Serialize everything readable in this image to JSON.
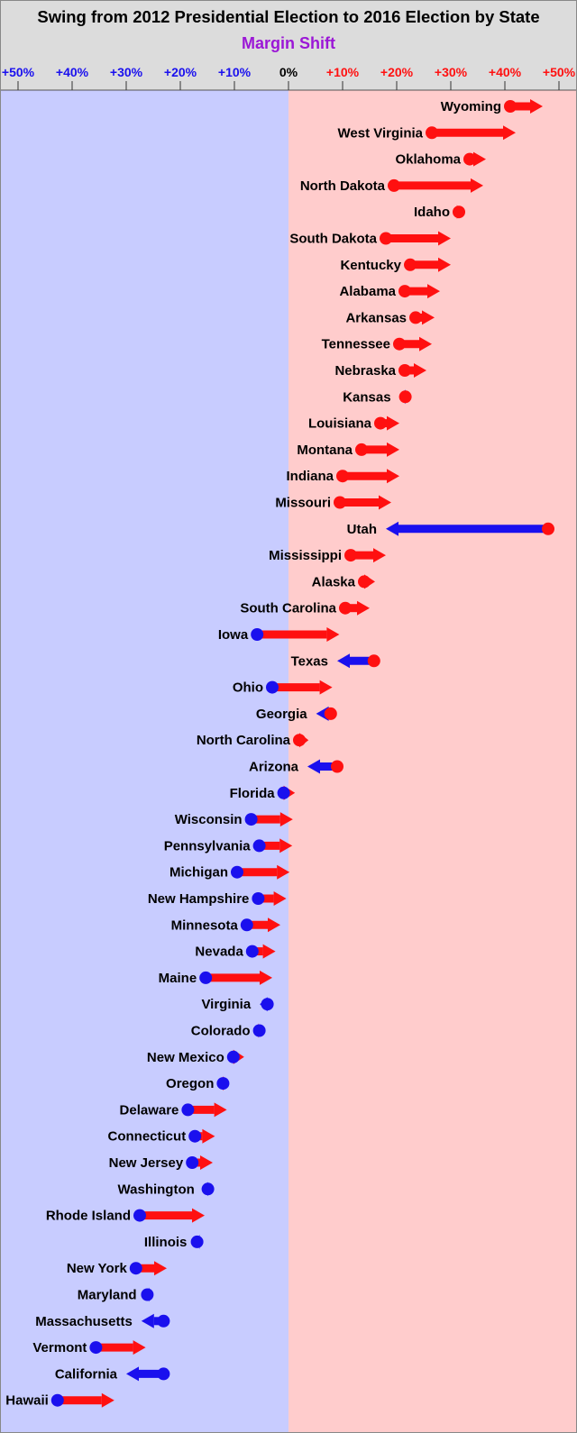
{
  "chart_data": {
    "type": "dot-arrow",
    "title": "Swing from 2012 Presidential Election to 2016 Election by State",
    "subtitle": "Margin Shift",
    "xlim": [
      -50,
      50
    ],
    "x_ticks": [
      {
        "value": -50,
        "label": "+50%"
      },
      {
        "value": -40,
        "label": "+40%"
      },
      {
        "value": -30,
        "label": "+30%"
      },
      {
        "value": -20,
        "label": "+20%"
      },
      {
        "value": -10,
        "label": "+10%"
      },
      {
        "value": 0,
        "label": "0%"
      },
      {
        "value": 10,
        "label": "+10%"
      },
      {
        "value": 20,
        "label": "+20%"
      },
      {
        "value": 30,
        "label": "+30%"
      },
      {
        "value": 40,
        "label": "+40%"
      },
      {
        "value": 50,
        "label": "+50%"
      }
    ],
    "states": [
      {
        "name": "Wyoming",
        "from": 41,
        "to": 47
      },
      {
        "name": "West Virginia",
        "from": 26.5,
        "to": 42
      },
      {
        "name": "Oklahoma",
        "from": 33.5,
        "to": 36.5
      },
      {
        "name": "North Dakota",
        "from": 19.5,
        "to": 36
      },
      {
        "name": "Idaho",
        "from": 31.5,
        "to": 31.8
      },
      {
        "name": "South Dakota",
        "from": 18,
        "to": 30
      },
      {
        "name": "Kentucky",
        "from": 22.5,
        "to": 30
      },
      {
        "name": "Alabama",
        "from": 21.5,
        "to": 28
      },
      {
        "name": "Arkansas",
        "from": 23.5,
        "to": 27
      },
      {
        "name": "Tennessee",
        "from": 20.5,
        "to": 26.5
      },
      {
        "name": "Nebraska",
        "from": 21.5,
        "to": 25.5
      },
      {
        "name": "Kansas",
        "from": 21.6,
        "to": 20.6
      },
      {
        "name": "Louisiana",
        "from": 17,
        "to": 20.5
      },
      {
        "name": "Montana",
        "from": 13.5,
        "to": 20.5
      },
      {
        "name": "Indiana",
        "from": 10,
        "to": 20.5
      },
      {
        "name": "Missouri",
        "from": 9.5,
        "to": 19
      },
      {
        "name": "Utah",
        "from": 48,
        "to": 18
      },
      {
        "name": "Mississippi",
        "from": 11.5,
        "to": 18
      },
      {
        "name": "Alaska",
        "from": 14,
        "to": 16
      },
      {
        "name": "South Carolina",
        "from": 10.5,
        "to": 15
      },
      {
        "name": "Iowa",
        "from": -5.8,
        "to": 9.4
      },
      {
        "name": "Texas",
        "from": 15.8,
        "to": 9
      },
      {
        "name": "Ohio",
        "from": -3,
        "to": 8.1
      },
      {
        "name": "Georgia",
        "from": 7.8,
        "to": 5.1
      },
      {
        "name": "North Carolina",
        "from": 2,
        "to": 3.7
      },
      {
        "name": "Arizona",
        "from": 9,
        "to": 3.5
      },
      {
        "name": "Florida",
        "from": -0.9,
        "to": 1.2
      },
      {
        "name": "Wisconsin",
        "from": -6.9,
        "to": 0.8
      },
      {
        "name": "Pennsylvania",
        "from": -5.4,
        "to": 0.7
      },
      {
        "name": "Michigan",
        "from": -9.5,
        "to": 0.2
      },
      {
        "name": "New Hampshire",
        "from": -5.6,
        "to": -0.4
      },
      {
        "name": "Minnesota",
        "from": -7.7,
        "to": -1.5
      },
      {
        "name": "Nevada",
        "from": -6.7,
        "to": -2.4
      },
      {
        "name": "Maine",
        "from": -15.3,
        "to": -3
      },
      {
        "name": "Virginia",
        "from": -3.9,
        "to": -5.3
      },
      {
        "name": "Colorado",
        "from": -5.4,
        "to": -4.9
      },
      {
        "name": "New Mexico",
        "from": -10.2,
        "to": -8.2
      },
      {
        "name": "Oregon",
        "from": -12.1,
        "to": -11
      },
      {
        "name": "Delaware",
        "from": -18.6,
        "to": -11.4
      },
      {
        "name": "Connecticut",
        "from": -17.3,
        "to": -13.6
      },
      {
        "name": "New Jersey",
        "from": -17.8,
        "to": -14
      },
      {
        "name": "Washington",
        "from": -14.9,
        "to": -15.7
      },
      {
        "name": "Rhode Island",
        "from": -27.5,
        "to": -15.5
      },
      {
        "name": "Illinois",
        "from": -16.9,
        "to": -17.1
      },
      {
        "name": "New York",
        "from": -28.2,
        "to": -22.5
      },
      {
        "name": "Maryland",
        "from": -26.1,
        "to": -26.4
      },
      {
        "name": "Massachusetts",
        "from": -23.1,
        "to": -27.2
      },
      {
        "name": "Vermont",
        "from": -35.6,
        "to": -26.4
      },
      {
        "name": "California",
        "from": -23.1,
        "to": -30
      },
      {
        "name": "Hawaii",
        "from": -42.7,
        "to": -32.2
      }
    ]
  },
  "colors": {
    "dem_background": "#c8ccff",
    "rep_background": "#ffcccc",
    "header_background": "#dcdcdc",
    "dem": "#1a10ee",
    "rep": "#ff1010",
    "subtitle": "#9b17d6",
    "zero_tick": "#000000"
  }
}
